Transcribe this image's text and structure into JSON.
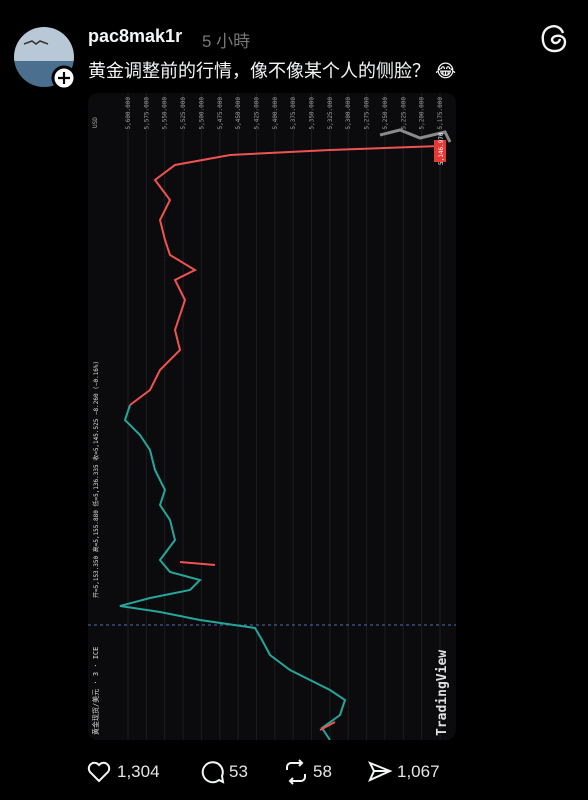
{
  "post": {
    "username": "pac8mak1r",
    "time": "5 小時",
    "text": "黄金调整前的行情，像不像某个人的侧脸？ 😂",
    "image": {
      "currency": "USD",
      "symbol": "黄金现货/美元 · 3 · ICE",
      "ohlc": "开=5,153.350  高=5,155.880  低=5,136.335  收=5,145.525  −8.260 (−0.16%)",
      "price_labels": [
        "5,600.000",
        "5,575.000",
        "5,550.000",
        "5,525.000",
        "5,500.000",
        "5,475.000",
        "5,450.000",
        "5,425.000",
        "5,400.000",
        "5,375.000",
        "5,350.000",
        "5,325.000",
        "5,300.000",
        "5,275.000",
        "5,250.000",
        "5,225.000",
        "5,200.000",
        "5,175.000"
      ],
      "last_price": "5,146.970",
      "watermark": "TradingView"
    },
    "likes": "1,304",
    "comments": "53",
    "reposts": "58",
    "shares": "1,067"
  }
}
